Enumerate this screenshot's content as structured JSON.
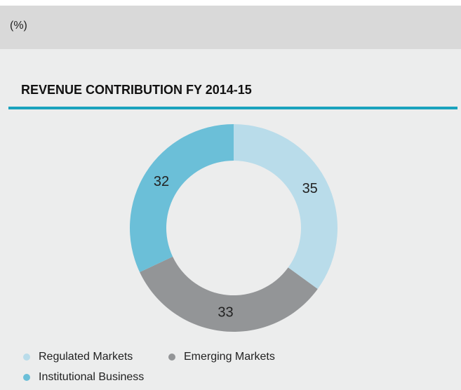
{
  "unit_label": "(%)",
  "chart_data": {
    "type": "pie",
    "donut": true,
    "title": "REVENUE CONTRIBUTION FY 2014-15",
    "categories": [
      "Regulated Markets",
      "Emerging Markets",
      "Institutional Business"
    ],
    "values": [
      35,
      33,
      32
    ],
    "colors": [
      "#b9dcea",
      "#939597",
      "#6bbfd8"
    ]
  }
}
